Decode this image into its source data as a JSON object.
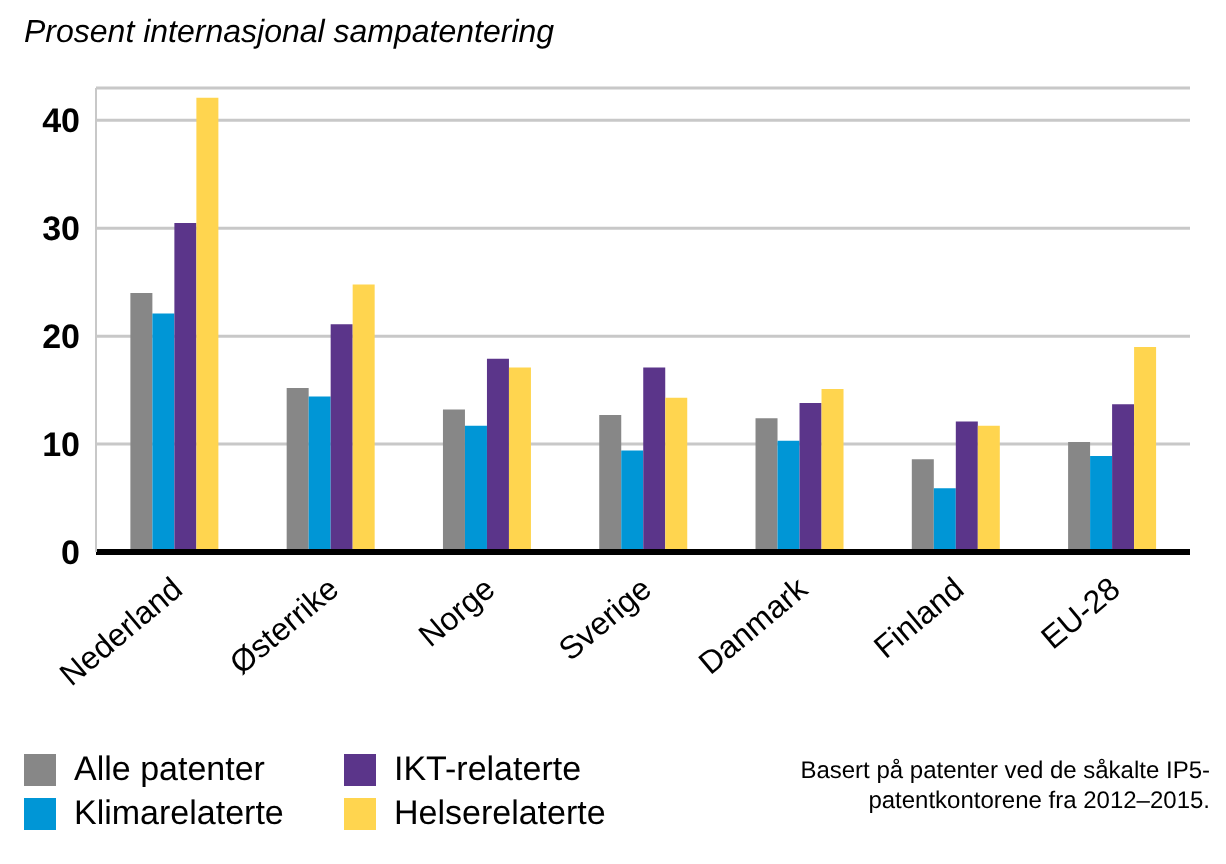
{
  "chart_data": {
    "type": "bar",
    "ylabel": "Prosent internasjonal sampatentering",
    "categories": [
      "Nederland",
      "Østerrike",
      "Norge",
      "Sverige",
      "Danmark",
      "Finland",
      "EU-28"
    ],
    "series": [
      {
        "name": "Alle patenter",
        "color": "#878787",
        "values": [
          24.0,
          15.2,
          13.2,
          12.7,
          12.4,
          8.6,
          10.2
        ]
      },
      {
        "name": "Klimarelaterte",
        "color": "#0096d6",
        "values": [
          22.1,
          14.4,
          11.7,
          9.4,
          10.3,
          5.9,
          8.9
        ]
      },
      {
        "name": "IKT-relaterte",
        "color": "#5b358a",
        "values": [
          30.5,
          21.1,
          17.9,
          17.1,
          13.8,
          12.1,
          13.7
        ]
      },
      {
        "name": "Helserelaterte",
        "color": "#ffd54f",
        "values": [
          42.1,
          24.8,
          17.1,
          14.3,
          15.1,
          11.7,
          19.0
        ]
      }
    ],
    "ylim": [
      0,
      43
    ],
    "yticks": [
      0,
      10,
      20,
      30,
      40
    ],
    "grid": "y",
    "legend": "bottom left",
    "annotations": [
      "Basert på patenter ved de såkalte IP5-patentkontorene fra 2012–2015."
    ]
  }
}
